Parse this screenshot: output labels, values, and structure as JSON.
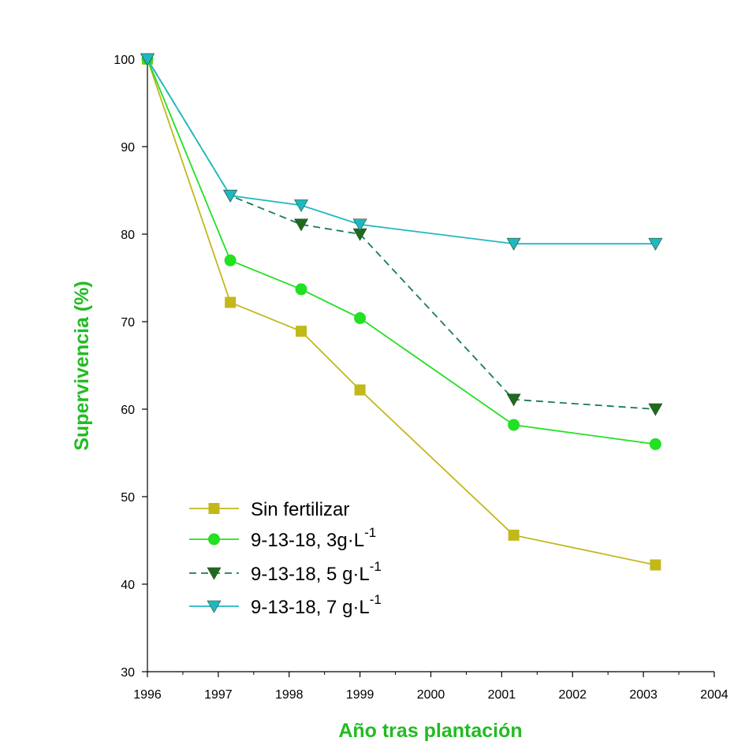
{
  "chart_data": {
    "type": "line",
    "xlabel": "Año tras plantación",
    "ylabel": "Supervivencia (%)",
    "xlim": [
      1996,
      2004
    ],
    "ylim": [
      30,
      100
    ],
    "x_ticks": [
      1996,
      1997,
      1998,
      1999,
      2000,
      2001,
      2002,
      2003,
      2004
    ],
    "x_tick_labels": [
      "1996",
      "1997",
      "1998",
      "1999",
      "2000",
      "2001",
      "2002",
      "2003",
      "2004"
    ],
    "y_ticks": [
      30,
      40,
      50,
      60,
      70,
      80,
      90,
      100
    ],
    "y_tick_labels": [
      "30",
      "40",
      "50",
      "60",
      "70",
      "80",
      "90",
      "100"
    ],
    "axis_title_color": "#22bb22",
    "legend_position": "lower-left",
    "series": [
      {
        "name": "Sin fertilizar",
        "label_main": "Sin fertilizar",
        "label_sup": "",
        "color": "#c2b81a",
        "marker": "square",
        "marker_color": "#c2b81a",
        "dashed": false,
        "x": [
          1996,
          1997.17,
          1998.17,
          1999,
          2001.17,
          2003.17
        ],
        "values": [
          100,
          72.2,
          68.9,
          62.2,
          45.6,
          42.2
        ]
      },
      {
        "name": "9-13-18, 3g·L-1",
        "label_main": "9-13-18, 3g·L",
        "label_sup": "-1",
        "color": "#22e022",
        "marker": "circle",
        "marker_color": "#22e022",
        "dashed": false,
        "x": [
          1996,
          1997.17,
          1998.17,
          1999,
          2001.17,
          2003.17
        ],
        "values": [
          100,
          77,
          73.7,
          70.4,
          58.2,
          56
        ]
      },
      {
        "name": "9-13-18, 5 g·L-1",
        "label_main": "9-13-18, 5 g·L",
        "label_sup": "-1",
        "color": "#1a7a5a",
        "marker": "triangle-down",
        "marker_color": "#1e6b1e",
        "dashed": true,
        "x": [
          1996,
          1997.17,
          1998.17,
          1999,
          2001.17,
          2003.17
        ],
        "values": [
          100,
          84.4,
          81.1,
          80,
          61.1,
          60
        ]
      },
      {
        "name": "9-13-18, 7 g·L-1",
        "label_main": "9-13-18, 7 g·L",
        "label_sup": "-1",
        "color": "#20b8c0",
        "marker": "triangle-down",
        "marker_color": "#20b8c0",
        "dashed": false,
        "x": [
          1996,
          1997.17,
          1998.17,
          1999,
          2001.17,
          2003.17
        ],
        "values": [
          100,
          84.4,
          83.3,
          81.1,
          78.9,
          78.9
        ]
      }
    ]
  }
}
